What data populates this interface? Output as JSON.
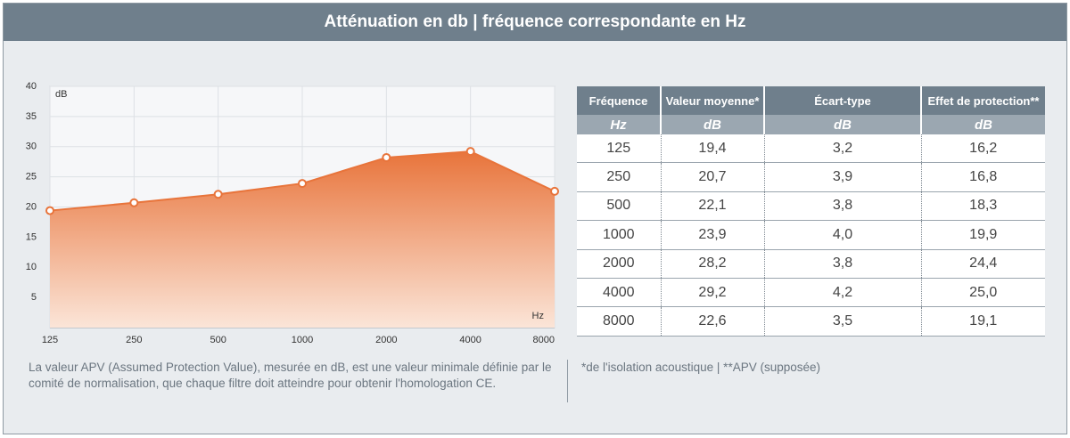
{
  "header": {
    "title": "Atténuation en db | fréquence correspondante en Hz"
  },
  "chart_data": {
    "type": "area",
    "categories": [
      "125",
      "250",
      "500",
      "1000",
      "2000",
      "4000",
      "8000"
    ],
    "values": [
      19.4,
      20.7,
      22.1,
      23.9,
      28.2,
      29.2,
      22.6
    ],
    "color": "#e8743b",
    "ylim": [
      0,
      40
    ],
    "yticks": [
      5,
      10,
      15,
      20,
      25,
      30,
      35,
      40
    ],
    "ylabel": "dB",
    "xlabel": "Hz",
    "grid": true
  },
  "table": {
    "columns": [
      "Fréquence",
      "Valeur moyenne*",
      "Écart-type",
      "Effet de protection**"
    ],
    "units": [
      "Hz",
      "dB",
      "dB",
      "dB"
    ],
    "rows": [
      [
        "125",
        "19,4",
        "3,2",
        "16,2"
      ],
      [
        "250",
        "20,7",
        "3,9",
        "16,8"
      ],
      [
        "500",
        "22,1",
        "3,8",
        "18,3"
      ],
      [
        "1000",
        "23,9",
        "4,0",
        "19,9"
      ],
      [
        "2000",
        "28,2",
        "3,8",
        "24,4"
      ],
      [
        "4000",
        "29,2",
        "4,2",
        "25,0"
      ],
      [
        "8000",
        "22,6",
        "3,5",
        "19,1"
      ]
    ]
  },
  "footnotes": {
    "left": "La valeur APV (Assumed Protection Value), mesurée en dB, est une valeur minimale définie par le comité de normalisation, que chaque filtre doit atteindre pour obtenir l'homologation CE.",
    "right": "*de l'isolation acoustique | **APV (supposée)"
  }
}
